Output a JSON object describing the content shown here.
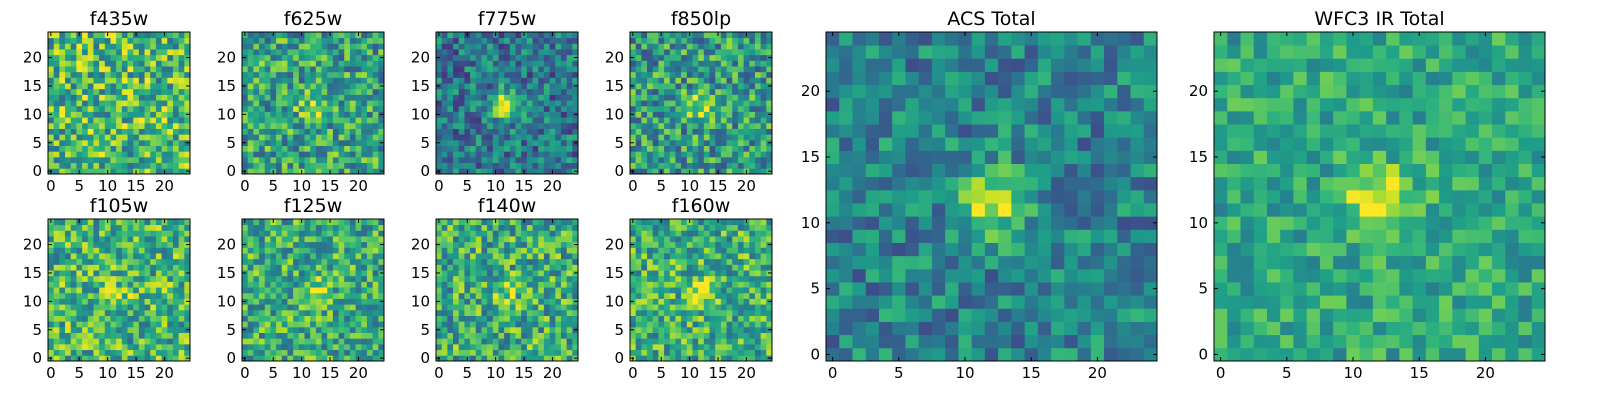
{
  "colormap": "viridis",
  "colors": {
    "low": "#440154",
    "mid": "#21918c",
    "high": "#fde725"
  },
  "chart_data": [
    {
      "type": "heatmap",
      "title": "f435w",
      "grid_size": 25,
      "xticks": [
        "0",
        "5",
        "10",
        "15",
        "20"
      ],
      "yticks": [
        "0",
        "5",
        "10",
        "15",
        "20"
      ],
      "source": {
        "center_boost": 0.0,
        "noise": 0.33,
        "base": 0.68
      }
    },
    {
      "type": "heatmap",
      "title": "f625w",
      "grid_size": 25,
      "xticks": [
        "0",
        "5",
        "10",
        "15",
        "20"
      ],
      "yticks": [
        "0",
        "5",
        "10",
        "15",
        "20"
      ],
      "source": {
        "center_boost": 0.3,
        "noise": 0.3,
        "base": 0.58
      }
    },
    {
      "type": "heatmap",
      "title": "f775w",
      "grid_size": 25,
      "xticks": [
        "0",
        "5",
        "10",
        "15",
        "20"
      ],
      "yticks": [
        "0",
        "5",
        "10",
        "15",
        "20"
      ],
      "source": {
        "center_boost": 0.65,
        "noise": 0.25,
        "base": 0.4
      }
    },
    {
      "type": "heatmap",
      "title": "f850lp",
      "grid_size": 25,
      "xticks": [
        "0",
        "5",
        "10",
        "15",
        "20"
      ],
      "yticks": [
        "0",
        "5",
        "10",
        "15",
        "20"
      ],
      "source": {
        "center_boost": 0.4,
        "noise": 0.3,
        "base": 0.55
      }
    },
    {
      "type": "heatmap",
      "title": "f105w",
      "grid_size": 25,
      "xticks": [
        "0",
        "5",
        "10",
        "15",
        "20"
      ],
      "yticks": [
        "0",
        "5",
        "10",
        "15",
        "20"
      ],
      "source": {
        "center_boost": 0.15,
        "noise": 0.3,
        "base": 0.66
      }
    },
    {
      "type": "heatmap",
      "title": "f125w",
      "grid_size": 25,
      "xticks": [
        "0",
        "5",
        "10",
        "15",
        "20"
      ],
      "yticks": [
        "0",
        "5",
        "10",
        "15",
        "20"
      ],
      "source": {
        "center_boost": 0.3,
        "noise": 0.28,
        "base": 0.62
      }
    },
    {
      "type": "heatmap",
      "title": "f140w",
      "grid_size": 25,
      "xticks": [
        "0",
        "5",
        "10",
        "15",
        "20"
      ],
      "yticks": [
        "0",
        "5",
        "10",
        "15",
        "20"
      ],
      "source": {
        "center_boost": 0.2,
        "noise": 0.3,
        "base": 0.62
      }
    },
    {
      "type": "heatmap",
      "title": "f160w",
      "grid_size": 25,
      "xticks": [
        "0",
        "5",
        "10",
        "15",
        "20"
      ],
      "yticks": [
        "0",
        "5",
        "10",
        "15",
        "20"
      ],
      "source": {
        "center_boost": 0.3,
        "noise": 0.28,
        "base": 0.64
      }
    },
    {
      "type": "heatmap",
      "title": "ACS Total",
      "grid_size": 25,
      "xticks": [
        "0",
        "5",
        "10",
        "15",
        "20"
      ],
      "yticks": [
        "0",
        "5",
        "10",
        "15",
        "20"
      ],
      "source": {
        "center_boost": 0.55,
        "noise": 0.22,
        "base": 0.45
      }
    },
    {
      "type": "heatmap",
      "title": "WFC3 IR Total",
      "grid_size": 25,
      "xticks": [
        "0",
        "5",
        "10",
        "15",
        "20"
      ],
      "yticks": [
        "0",
        "5",
        "10",
        "15",
        "20"
      ],
      "source": {
        "center_boost": 0.45,
        "noise": 0.18,
        "base": 0.6
      }
    }
  ]
}
